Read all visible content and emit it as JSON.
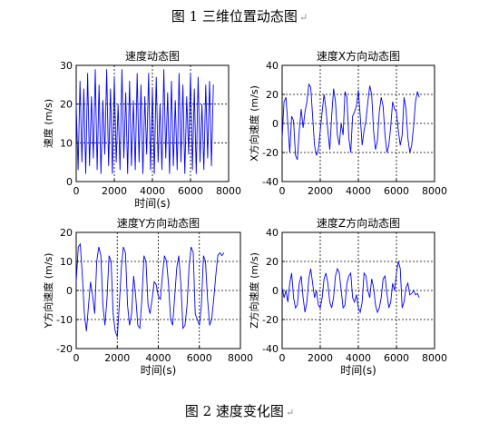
{
  "captions": {
    "top": "图 1  三维位置动态图",
    "bottom": "图 2  速度变化图",
    "return_mark": "↵"
  },
  "colors": {
    "series_line": "#0000ff",
    "axes": "#000000",
    "grid": "#000000",
    "background": "#ffffff"
  },
  "chart_data": [
    {
      "type": "line",
      "title": "速度动态图",
      "xlabel": "时间(s)",
      "ylabel": "速度 (m/s)",
      "xlim": [
        0,
        8000
      ],
      "ylim": [
        0,
        30
      ],
      "xticks": [
        "0",
        "2000",
        "4000",
        "6000",
        "8000"
      ],
      "yticks": [
        "0",
        "10",
        "20",
        "30"
      ],
      "grid": true,
      "x": [
        0,
        100,
        200,
        300,
        400,
        500,
        600,
        700,
        800,
        900,
        1000,
        1100,
        1200,
        1300,
        1400,
        1500,
        1600,
        1700,
        1800,
        1900,
        2000,
        2100,
        2200,
        2300,
        2400,
        2500,
        2600,
        2700,
        2800,
        2900,
        3000,
        3100,
        3200,
        3300,
        3400,
        3500,
        3600,
        3700,
        3800,
        3900,
        4000,
        4100,
        4200,
        4300,
        4400,
        4500,
        4600,
        4700,
        4800,
        4900,
        5000,
        5100,
        5200,
        5300,
        5400,
        5500,
        5600,
        5700,
        5800,
        5900,
        6000,
        6100,
        6200,
        6300,
        6400,
        6500,
        6600,
        6700,
        6800,
        6900,
        7000,
        7100,
        7200
      ],
      "y": [
        20,
        3,
        26,
        5,
        24,
        2,
        28,
        4,
        22,
        6,
        29,
        3,
        25,
        2,
        21,
        7,
        29,
        4,
        24,
        2,
        27,
        5,
        20,
        3,
        29,
        6,
        23,
        2,
        26,
        4,
        21,
        3,
        28,
        5,
        25,
        2,
        22,
        7,
        28,
        3,
        24,
        2,
        27,
        5,
        20,
        3,
        29,
        6,
        23,
        2,
        26,
        4,
        21,
        3,
        28,
        5,
        25,
        2,
        22,
        7,
        28,
        3,
        24,
        2,
        27,
        5,
        20,
        3,
        25,
        6,
        26,
        4,
        25
      ],
      "series": [
        {
          "values": "y"
        }
      ]
    },
    {
      "type": "line",
      "title": "速度X方向动态图",
      "xlabel": "",
      "ylabel": "X方向速度 (m/s)",
      "xlim": [
        0,
        8000
      ],
      "ylim": [
        -40,
        40
      ],
      "xticks": [
        "0",
        "2000",
        "4000",
        "6000",
        "8000"
      ],
      "yticks": [
        "-40",
        "-20",
        "0",
        "20",
        "40"
      ],
      "grid": true,
      "x": [
        0,
        100,
        200,
        300,
        400,
        500,
        600,
        700,
        800,
        900,
        1000,
        1100,
        1200,
        1300,
        1400,
        1500,
        1600,
        1700,
        1800,
        1900,
        2000,
        2100,
        2200,
        2300,
        2400,
        2500,
        2600,
        2700,
        2800,
        2900,
        3000,
        3100,
        3200,
        3300,
        3400,
        3500,
        3600,
        3700,
        3800,
        3900,
        4000,
        4100,
        4200,
        4300,
        4400,
        4500,
        4600,
        4700,
        4800,
        4900,
        5000,
        5100,
        5200,
        5300,
        5400,
        5500,
        5600,
        5700,
        5800,
        5900,
        6000,
        6100,
        6200,
        6300,
        6400,
        6500,
        6600,
        6700,
        6800,
        6900,
        7000,
        7100,
        7200
      ],
      "y": [
        -10,
        15,
        18,
        0,
        -20,
        5,
        2,
        -22,
        -25,
        -5,
        10,
        -3,
        8,
        15,
        27,
        25,
        5,
        -15,
        -22,
        -18,
        -5,
        8,
        20,
        10,
        -5,
        -18,
        5,
        24,
        15,
        -8,
        -15,
        0,
        -8,
        22,
        18,
        -10,
        -20,
        5,
        8,
        12,
        23,
        5,
        -15,
        -5,
        2,
        15,
        26,
        20,
        -5,
        -18,
        -12,
        8,
        18,
        12,
        -8,
        -20,
        -15,
        -2,
        15,
        10,
        8,
        -5,
        -15,
        -8,
        18,
        10,
        -10,
        -20,
        -15,
        -2,
        15,
        22,
        18
      ]
    },
    {
      "type": "line",
      "title": "速度Y方向动态图",
      "xlabel": "时间(s)",
      "ylabel": "Y方向速度 (m/s)",
      "xlim": [
        0,
        8000
      ],
      "ylim": [
        -20,
        20
      ],
      "xticks": [
        "0",
        "2000",
        "4000",
        "6000",
        "8000"
      ],
      "yticks": [
        "-20",
        "-10",
        "0",
        "10",
        "20"
      ],
      "grid": true,
      "x": [
        0,
        100,
        200,
        300,
        400,
        500,
        600,
        700,
        800,
        900,
        1000,
        1100,
        1200,
        1300,
        1400,
        1500,
        1600,
        1700,
        1800,
        1900,
        2000,
        2100,
        2200,
        2300,
        2400,
        2500,
        2600,
        2700,
        2800,
        2900,
        3000,
        3100,
        3200,
        3300,
        3400,
        3500,
        3600,
        3700,
        3800,
        3900,
        4000,
        4100,
        4200,
        4300,
        4400,
        4500,
        4600,
        4700,
        4800,
        4900,
        5000,
        5100,
        5200,
        5300,
        5400,
        5500,
        5600,
        5700,
        5800,
        5900,
        6000,
        6100,
        6200,
        6300,
        6400,
        6500,
        6600,
        6700,
        6800,
        6900,
        7000,
        7100,
        7200
      ],
      "y": [
        3,
        15,
        16,
        5,
        -8,
        -14,
        -5,
        3,
        -2,
        -8,
        10,
        15,
        12,
        -5,
        -12,
        -3,
        12,
        10,
        -8,
        -14,
        -16,
        -5,
        8,
        15,
        13,
        -5,
        -12,
        -8,
        5,
        -2,
        -12,
        -13,
        -3,
        12,
        10,
        -5,
        -8,
        -3,
        3,
        2,
        -2,
        -3,
        5,
        12,
        10,
        2,
        -10,
        -12,
        -2,
        8,
        12,
        2,
        -13,
        -12,
        -5,
        8,
        15,
        13,
        -8,
        -10,
        -12,
        -5,
        12,
        10,
        -3,
        -12,
        -10,
        -3,
        5,
        12,
        13,
        12,
        13
      ]
    },
    {
      "type": "line",
      "title": "速度Z方向动态图",
      "xlabel": "时间(s)",
      "ylabel": "Z方向速度 (m/s)",
      "xlim": [
        0,
        8000
      ],
      "ylim": [
        -40,
        40
      ],
      "xticks": [
        "0",
        "2000",
        "4000",
        "6000",
        "8000"
      ],
      "yticks": [
        "-40",
        "-20",
        "0",
        "20",
        "40"
      ],
      "grid": true,
      "x": [
        0,
        100,
        200,
        300,
        400,
        500,
        600,
        700,
        800,
        900,
        1000,
        1100,
        1200,
        1300,
        1400,
        1500,
        1600,
        1700,
        1800,
        1900,
        2000,
        2100,
        2200,
        2300,
        2400,
        2500,
        2600,
        2700,
        2800,
        2900,
        3000,
        3100,
        3200,
        3300,
        3400,
        3500,
        3600,
        3700,
        3800,
        3900,
        4000,
        4100,
        4200,
        4300,
        4400,
        4500,
        4600,
        4700,
        4800,
        4900,
        5000,
        5100,
        5200,
        5300,
        5400,
        5500,
        5600,
        5700,
        5800,
        5900,
        6000,
        6100,
        6200,
        6300,
        6400,
        6500,
        6600,
        6700,
        6800,
        6900,
        7000,
        7100,
        7200
      ],
      "y": [
        2,
        -5,
        0,
        -8,
        5,
        12,
        -5,
        -12,
        -10,
        5,
        10,
        -5,
        -15,
        -8,
        8,
        15,
        5,
        -5,
        0,
        -10,
        -12,
        -5,
        8,
        12,
        5,
        -8,
        -12,
        -5,
        10,
        15,
        12,
        0,
        -12,
        -10,
        5,
        10,
        12,
        -5,
        -8,
        -3,
        -12,
        -15,
        -8,
        12,
        10,
        0,
        -5,
        8,
        2,
        -10,
        -15,
        -12,
        -5,
        8,
        10,
        -2,
        -12,
        -8,
        5,
        0,
        12,
        20,
        15,
        -12,
        -8,
        2,
        5,
        -3,
        -2,
        0,
        -3,
        -2,
        -5
      ]
    }
  ]
}
